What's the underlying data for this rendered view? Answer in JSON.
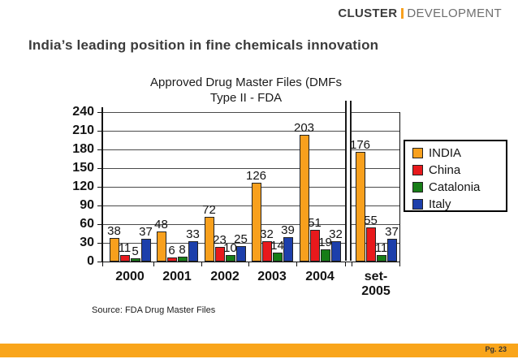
{
  "header": {
    "logo_primary": "CLUSTER",
    "logo_secondary": "DEVELOPMENT",
    "slide_title": "India’s leading position in fine chemicals innovation"
  },
  "chart_data": {
    "type": "bar",
    "title_line1": "Approved Drug Master Files (DMFs",
    "title_line2": "Type II - FDA",
    "categories": [
      "2000",
      "2001",
      "2002",
      "2003",
      "2004",
      "set-\n2005"
    ],
    "series": [
      {
        "name": "INDIA",
        "color": "#F8A01D",
        "values": [
          38,
          48,
          72,
          126,
          203,
          176
        ]
      },
      {
        "name": "China",
        "color": "#E8191C",
        "values": [
          11,
          6,
          23,
          32,
          51,
          55
        ]
      },
      {
        "name": "Catalonia",
        "color": "#177D17",
        "values": [
          5,
          8,
          10,
          14,
          19,
          11
        ]
      },
      {
        "name": "Italy",
        "color": "#1C3FAB",
        "values": [
          37,
          33,
          25,
          39,
          32,
          37
        ]
      }
    ],
    "y_ticks": [
      0,
      30,
      60,
      90,
      120,
      150,
      180,
      210,
      240
    ],
    "ylim": [
      0,
      240
    ],
    "grid": true,
    "legend_position": "right",
    "axis_break_after_category": "2004"
  },
  "footer": {
    "source": "Source: FDA Drug Master Files",
    "page": "Pg. 23"
  }
}
